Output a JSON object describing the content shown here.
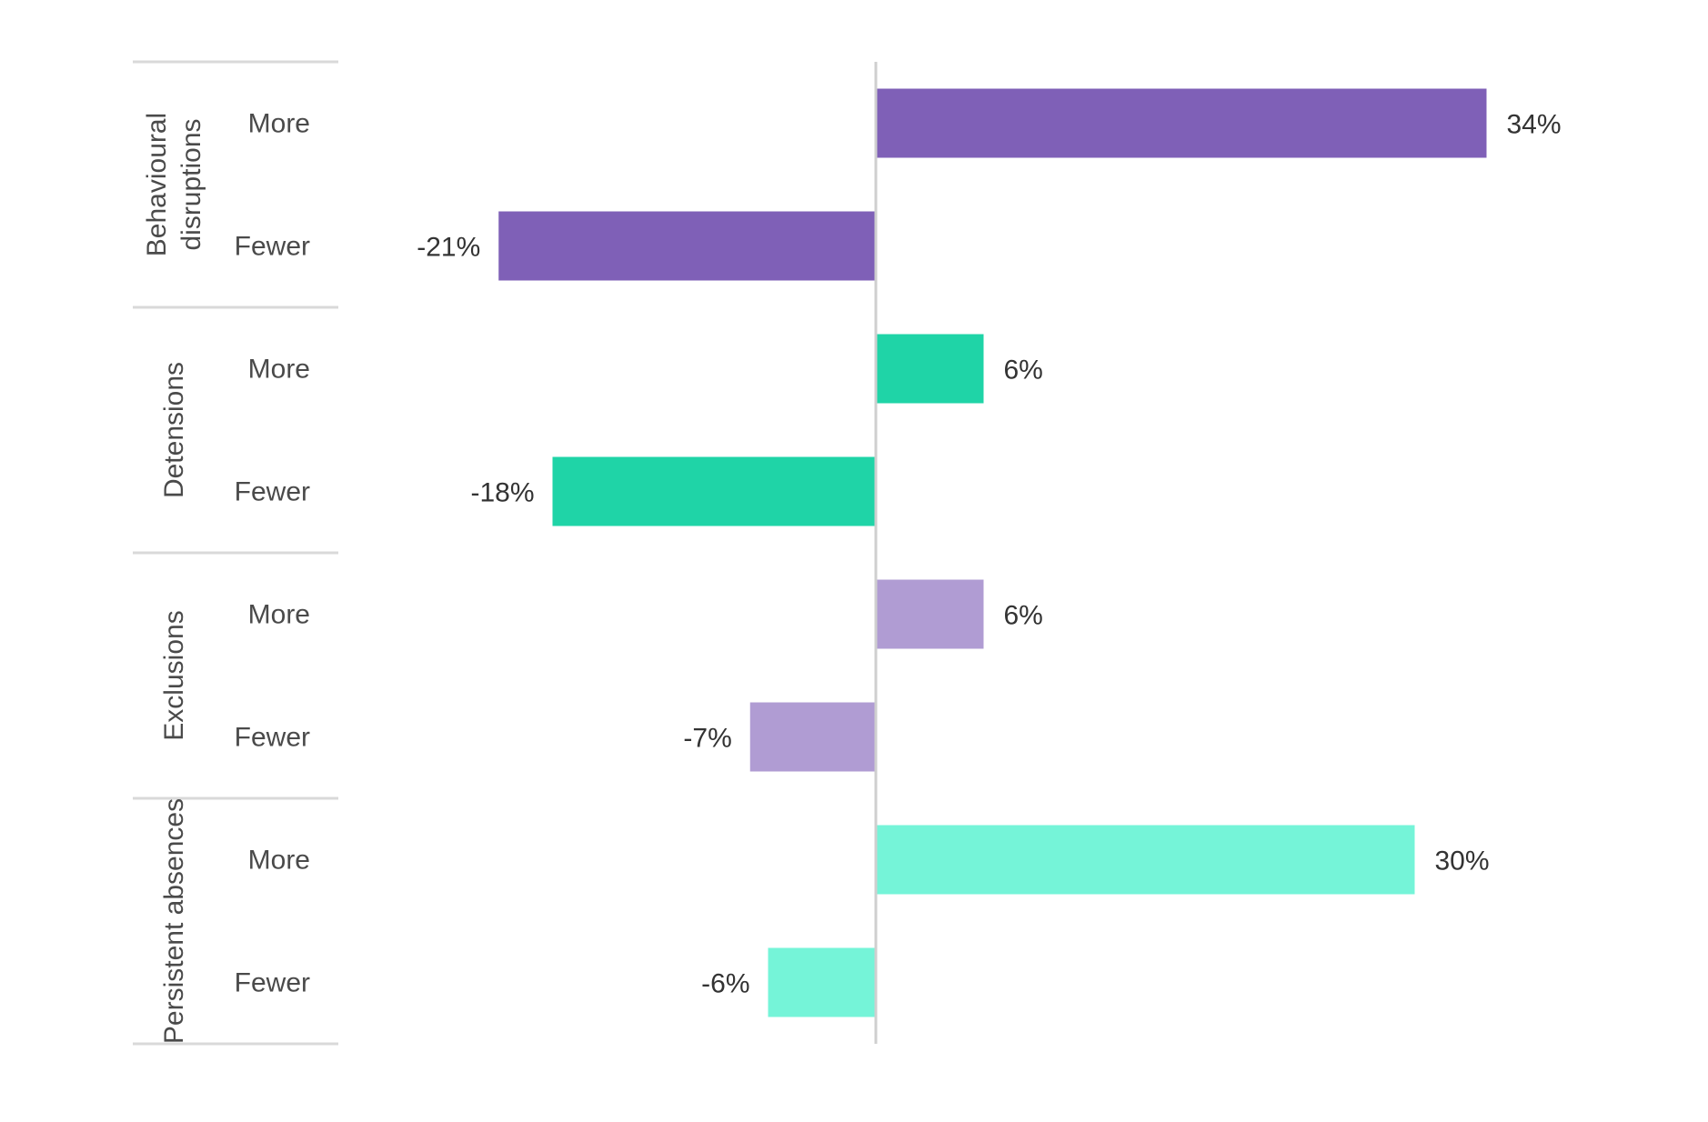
{
  "chart_data": {
    "type": "bar",
    "orientation": "horizontal",
    "title": "",
    "xlabel": "",
    "ylabel": "",
    "xlim": [
      -25,
      40
    ],
    "grid": false,
    "legend": "none",
    "groups": [
      {
        "name": "Behavioural disruptions",
        "name_lines": [
          "Behavioural",
          "disruptions"
        ],
        "color": "#7f60b7",
        "bars": [
          {
            "category": "More",
            "value": 34,
            "label": "34%"
          },
          {
            "category": "Fewer",
            "value": -21,
            "label": "-21%"
          }
        ]
      },
      {
        "name": "Detensions",
        "name_lines": [
          "Detensions"
        ],
        "color": "#1fd4a7",
        "bars": [
          {
            "category": "More",
            "value": 6,
            "label": "6%"
          },
          {
            "category": "Fewer",
            "value": -18,
            "label": "-18%"
          }
        ]
      },
      {
        "name": "Exclusions",
        "name_lines": [
          "Exclusions"
        ],
        "color": "#b09cd3",
        "bars": [
          {
            "category": "More",
            "value": 6,
            "label": "6%"
          },
          {
            "category": "Fewer",
            "value": -7,
            "label": "-7%"
          }
        ]
      },
      {
        "name": "Persistent absences",
        "name_lines": [
          "Persistent absences"
        ],
        "color": "#75f4d8",
        "bars": [
          {
            "category": "More",
            "value": 30,
            "label": "30%"
          },
          {
            "category": "Fewer",
            "value": -6,
            "label": "-6%"
          }
        ]
      }
    ]
  },
  "colors": {
    "axis": "#cfcfcf",
    "separator": "#d9d9d9",
    "text": "#4a4a4a"
  }
}
